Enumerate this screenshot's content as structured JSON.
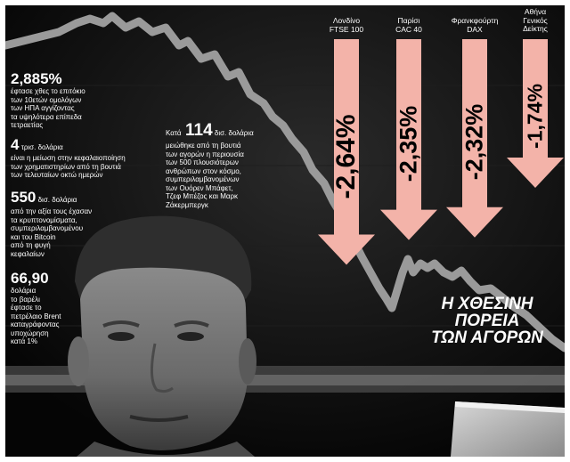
{
  "stats": [
    {
      "big": "2,885%",
      "lines": [
        "έφτασε χθες το επιτόκιο",
        "των 10ετών ομολόγων",
        "των ΗΠΑ αγγίζοντας",
        "τα υψηλότερα επίπεδα",
        "τετραετίας"
      ]
    },
    {
      "big": "4",
      "rest": " τρισ. δολάρια",
      "lines": [
        "είναι η μείωση στην κεφαλαιοποίηση",
        "των χρηματιστηρίων από τη βουτιά",
        "των τελευταίων οκτώ ημερών"
      ]
    },
    {
      "big": "550",
      "rest": " δισ. δολάρια",
      "lines": [
        "από την αξία τους έχασαν",
        "τα κρυπτονομίσματα,",
        "συμπεριλαμβανομένου",
        "και του Bitcoin",
        "από τη φυγή",
        "κεφαλαίων"
      ]
    },
    {
      "big": "66,90",
      "lines": [
        "δολάρια",
        "το βαρέλι",
        "έφτασε το",
        "πετρέλαιο Brent",
        "καταγράφοντας",
        "υποχώρηση",
        "κατά 1%"
      ]
    }
  ],
  "middle_stat": {
    "prefix": "Κατά",
    "big": "114",
    "rest": " δισ. δολάρια",
    "lines": [
      "μειώθηκε από τη βουτιά",
      "των αγορών η περιουσία",
      "των 500 πλουσιότερων",
      "ανθρώπων στον κόσμο,",
      "συμπεριλαμβανομένων",
      "των Ουόρεν Μπάφετ,",
      "Τζεφ Μπέζος και Μαρκ",
      "Ζάκερμπεργκ"
    ]
  },
  "markets": [
    {
      "city": "Λονδίνο",
      "index": "FTSE 100",
      "change": "-2,64%",
      "change_value": -2.64
    },
    {
      "city": "Παρίσι",
      "index": "CAC 40",
      "change": "-2,35%",
      "change_value": -2.35
    },
    {
      "city": "Φρανκφούρτη",
      "index": "DAX",
      "change": "-2,32%",
      "change_value": -2.32
    },
    {
      "city": "Αθήνα",
      "index": "Γενικός",
      "index2": "Δείκτης",
      "change": "-1,74%",
      "change_value": -1.74
    }
  ],
  "headline": [
    "Η ΧΘΕΣΙΝΗ",
    "ΠΟΡΕΙΑ",
    "ΤΩΝ ΑΓΟΡΩΝ"
  ],
  "colors": {
    "arrow": "#f3b3a9",
    "chart_line": "#9a9a9a",
    "text": "#ffffff"
  }
}
